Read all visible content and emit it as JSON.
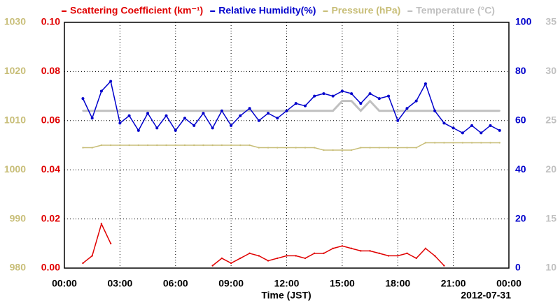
{
  "chart_data": {
    "type": "line",
    "x_label": "Time (JST)",
    "date_label": "2012-07-31",
    "xlim": [
      0,
      24
    ],
    "xticks": [
      {
        "value": 0,
        "label": "00:00"
      },
      {
        "value": 3,
        "label": "03:00"
      },
      {
        "value": 6,
        "label": "06:00"
      },
      {
        "value": 9,
        "label": "09:00"
      },
      {
        "value": 12,
        "label": "12:00"
      },
      {
        "value": 15,
        "label": "15:00"
      },
      {
        "value": 18,
        "label": "18:00"
      },
      {
        "value": 21,
        "label": "21:00"
      },
      {
        "value": 24,
        "label": "00:00"
      }
    ],
    "ylim": [
      0,
      0.1
    ],
    "yticks": [
      {
        "value": 0,
        "label": "0.00"
      },
      {
        "value": 0.02,
        "label": "0.02"
      },
      {
        "value": 0.04,
        "label": "0.04"
      },
      {
        "value": 0.06,
        "label": "0.06"
      },
      {
        "value": 0.08,
        "label": "0.08"
      },
      {
        "value": 0.1,
        "label": "0.10"
      }
    ],
    "y2lim": [
      0,
      100
    ],
    "y2ticks": [
      0,
      20,
      40,
      60,
      80,
      100
    ],
    "y3lim": [
      980,
      1030
    ],
    "y3ticks": [
      980,
      990,
      1000,
      1010,
      1020,
      1030
    ],
    "y4lim": [
      10,
      35
    ],
    "y4ticks": [
      10,
      15,
      20,
      25,
      30,
      35
    ],
    "grid": true,
    "x": [
      1.0,
      1.5,
      2.0,
      2.5,
      3.0,
      3.5,
      4.0,
      4.5,
      5.0,
      5.5,
      6.0,
      6.5,
      7.0,
      7.5,
      8.0,
      8.5,
      9.0,
      9.5,
      10.0,
      10.5,
      11.0,
      11.5,
      12.0,
      12.5,
      13.0,
      13.5,
      14.0,
      14.5,
      15.0,
      15.5,
      16.0,
      16.5,
      17.0,
      17.5,
      18.0,
      18.5,
      19.0,
      19.5,
      20.0,
      20.5,
      21.0,
      21.5,
      22.0,
      22.5,
      23.0,
      23.5
    ],
    "series": [
      {
        "name": "Scattering Coefficient (km⁻¹)",
        "color": "#e00000",
        "axis": "y",
        "markers": false,
        "values": [
          0.002,
          0.005,
          0.018,
          0.01,
          null,
          null,
          null,
          null,
          null,
          null,
          null,
          null,
          null,
          null,
          0.001,
          0.004,
          0.002,
          0.004,
          0.006,
          0.005,
          0.003,
          0.004,
          0.005,
          0.005,
          0.004,
          0.006,
          0.006,
          0.008,
          0.009,
          0.008,
          0.007,
          0.007,
          0.006,
          0.005,
          0.005,
          0.006,
          0.004,
          0.008,
          0.005,
          0.001,
          null,
          null,
          null,
          null,
          null,
          null
        ]
      },
      {
        "name": "Relative Humidity(%)",
        "color": "#0000cc",
        "axis": "y2",
        "markers": true,
        "values": [
          69,
          61,
          72,
          76,
          59,
          62,
          56,
          63,
          57,
          62,
          56,
          61,
          58,
          63,
          57,
          64,
          58,
          62,
          65,
          60,
          63,
          61,
          64,
          67,
          66,
          70,
          71,
          70,
          72,
          71,
          67,
          71,
          69,
          70,
          60,
          65,
          68,
          75,
          64,
          59,
          57,
          55,
          58,
          55,
          58,
          56
        ]
      },
      {
        "name": "Pressure (hPa)",
        "color": "#c8be78",
        "axis": "y3",
        "markers": false,
        "values": [
          1004.5,
          1004.5,
          1005,
          1005,
          1005,
          1005,
          1005,
          1005,
          1005,
          1005,
          1005,
          1005,
          1005,
          1005,
          1005,
          1005,
          1005,
          1005,
          1005,
          1004.5,
          1004.5,
          1004.5,
          1004.5,
          1004.5,
          1004.5,
          1004.5,
          1004,
          1004,
          1004,
          1004,
          1004.5,
          1004.5,
          1004.5,
          1004.5,
          1004.5,
          1004.5,
          1004.5,
          1005.5,
          1005.5,
          1005.5,
          1005.5,
          1005.5,
          1005.5,
          1005.5,
          1005.5,
          1005.5
        ]
      },
      {
        "name": "Temperature (°C)",
        "color": "#c0c0c0",
        "axis": "y4",
        "markers": false,
        "values": [
          26,
          26,
          26,
          26,
          26,
          26,
          26,
          26,
          26,
          26,
          26,
          26,
          26,
          26,
          26,
          26,
          26,
          26,
          26,
          26,
          26,
          26,
          26,
          26,
          26,
          26,
          26,
          26,
          27,
          27,
          26,
          27,
          26,
          26,
          26,
          26,
          26,
          26,
          26,
          26,
          26,
          26,
          26,
          26,
          26,
          26
        ]
      }
    ]
  }
}
